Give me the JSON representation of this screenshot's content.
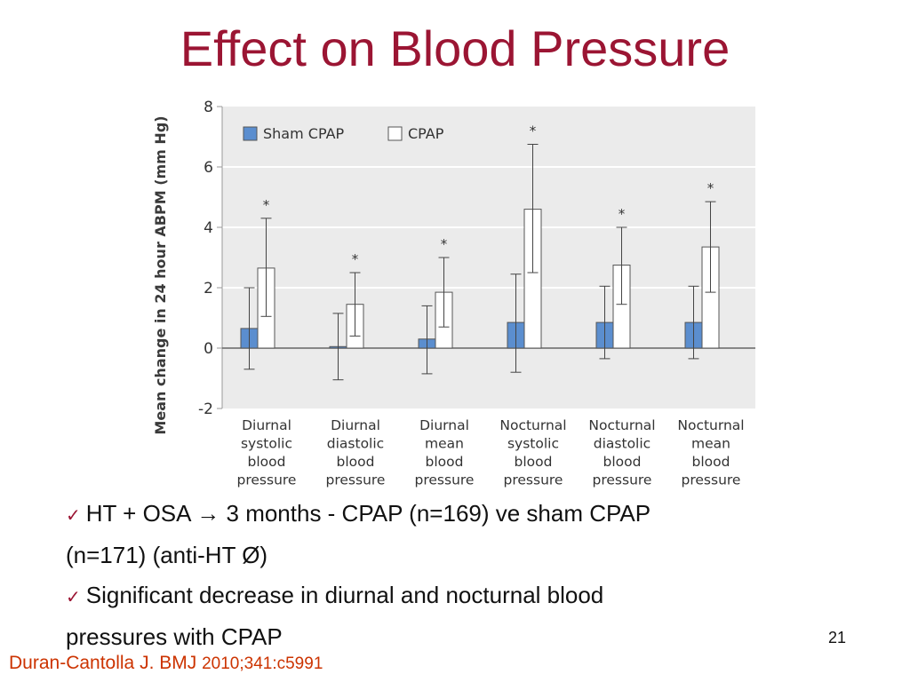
{
  "slide": {
    "title": "Effect on Blood Pressure",
    "bullets": [
      {
        "line1": "HT + OSA → 3 months - CPAP (n=169) ve sham CPAP",
        "line2": "(n=171) (anti-HT Ø)"
      },
      {
        "line1": "Significant decrease in diurnal and nocturnal blood",
        "line2": "pressures with CPAP"
      }
    ],
    "page_number": "21",
    "citation_author": "Duran-Cantolla J. BMJ",
    "citation_ref": "2010;341:c5991"
  },
  "colors": {
    "title": "#9b1533",
    "citation": "#cc3300",
    "sham_bar": "#5b8ecf",
    "plot_bg": "#ebebeb"
  },
  "icons": {
    "bullet": "checkmark-icon"
  },
  "chart_data": {
    "type": "bar",
    "ylabel": "Mean change in 24 hour ABPM (mm Hg)",
    "ylim": [
      -2,
      8
    ],
    "yticks": [
      "8",
      "6",
      "4",
      "2",
      "0",
      "-2"
    ],
    "legend_position": "top-left",
    "grid": true,
    "categories": [
      "Diurnal systolic blood pressure",
      "Diurnal diastolic blood pressure",
      "Diurnal mean blood pressure",
      "Nocturnal systolic blood pressure",
      "Nocturnal diastolic blood pressure",
      "Nocturnal mean blood pressure"
    ],
    "category_lines": [
      [
        "Diurnal",
        "systolic",
        "blood",
        "pressure"
      ],
      [
        "Diurnal",
        "diastolic",
        "blood",
        "pressure"
      ],
      [
        "Diurnal",
        "mean",
        "blood",
        "pressure"
      ],
      [
        "Nocturnal",
        "systolic",
        "blood",
        "pressure"
      ],
      [
        "Nocturnal",
        "diastolic",
        "blood",
        "pressure"
      ],
      [
        "Nocturnal",
        "mean",
        "blood",
        "pressure"
      ]
    ],
    "series": [
      {
        "name": "Sham CPAP",
        "values": [
          0.65,
          0.05,
          0.3,
          0.85,
          0.85,
          0.85
        ],
        "error_low": [
          -0.7,
          -1.05,
          -0.85,
          -0.8,
          -0.35,
          -0.35
        ],
        "error_high": [
          2.0,
          1.15,
          1.4,
          2.45,
          2.05,
          2.05
        ]
      },
      {
        "name": "CPAP",
        "values": [
          2.65,
          1.45,
          1.85,
          4.6,
          2.75,
          3.35
        ],
        "error_low": [
          1.05,
          0.4,
          0.7,
          2.5,
          1.45,
          1.85
        ],
        "error_high": [
          4.3,
          2.5,
          3.0,
          6.75,
          4.0,
          4.85
        ]
      }
    ],
    "annotations": [
      "*",
      "*",
      "*",
      "*",
      "*",
      "*"
    ]
  }
}
